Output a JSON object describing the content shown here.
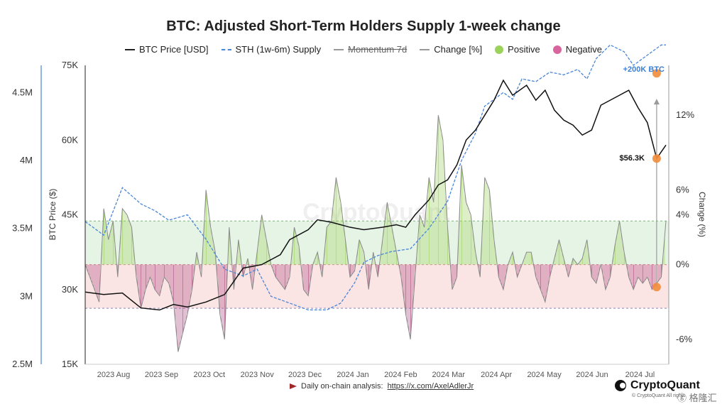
{
  "title": "BTC: Adjusted Short-Term Holders Supply 1-week change",
  "legend": [
    {
      "label": "BTC Price [USD]",
      "kind": "line",
      "color": "#222222"
    },
    {
      "label": "STH (1w-6m) Supply",
      "kind": "dash",
      "color": "#4a86d8"
    },
    {
      "label": "Momentum 7d",
      "kind": "gray-strike",
      "color": "#888888"
    },
    {
      "label": "Change [%]",
      "kind": "gray",
      "color": "#999999"
    },
    {
      "label": "Positive",
      "kind": "dot",
      "color": "#9bd35a"
    },
    {
      "label": "Negative",
      "kind": "dot",
      "color": "#d8659e"
    }
  ],
  "footer": {
    "prefix": "Daily on-chain analysis: ",
    "link": "https://x.com/AxelAdlerJr"
  },
  "brand": "CryptoQuant",
  "brand_sub": "© CryptoQuant All rights",
  "watermark": "CryptoQuant",
  "corner_mark": "ⓖ 格隆汇",
  "chart_data": {
    "type": "line",
    "x_ticks": [
      "2023 Aug",
      "2023 Sep",
      "2023 Oct",
      "2023 Nov",
      "2023 Dec",
      "2024 Jan",
      "2024 Feb",
      "2024 Mar",
      "2024 Apr",
      "2024 May",
      "2024 Jun",
      "2024 Jul"
    ],
    "axes": {
      "supply_ticks": [
        "4.5M",
        "4M",
        "3.5M",
        "3M",
        "2.5M"
      ],
      "price_ticks": [
        "75K",
        "60K",
        "45K",
        "30K",
        "15K"
      ],
      "price_label": "BTC Price ($)",
      "change_ticks": [
        "12%",
        "6%",
        "4%",
        "0%",
        "-6%"
      ],
      "change_label": "Change (%)",
      "price_range": [
        15000,
        75000
      ],
      "change_range": [
        -8,
        16
      ],
      "supply_range": [
        2500000,
        4700000
      ]
    },
    "bands": {
      "positive_upper": 3.5,
      "negative_lower": -3.5
    },
    "annotations": {
      "sth_label": "+200K BTC",
      "price_label": "$56.3K"
    },
    "series": [
      {
        "name": "BTC Price [USD]",
        "t": [
          0,
          4,
          8,
          12,
          16,
          19,
          22,
          26,
          30,
          34,
          38,
          42,
          44,
          48,
          50,
          53,
          57,
          60,
          64,
          67,
          69,
          71,
          74,
          76,
          78,
          80,
          82,
          84,
          86,
          88,
          90,
          92,
          95,
          97,
          99,
          101,
          103,
          105,
          107,
          109,
          111,
          113,
          115,
          117,
          119,
          121,
          123,
          125
        ],
        "values": [
          29500,
          29000,
          29300,
          26300,
          25900,
          27000,
          26500,
          27500,
          29000,
          34300,
          35000,
          37000,
          40000,
          42000,
          44000,
          43500,
          42500,
          42000,
          42500,
          43000,
          42500,
          45000,
          48000,
          51000,
          52000,
          55000,
          60000,
          62000,
          65000,
          68000,
          72000,
          69000,
          71000,
          68000,
          70000,
          66000,
          64000,
          63000,
          61000,
          62000,
          67000,
          68000,
          69000,
          70000,
          66500,
          63500,
          56300,
          59000
        ]
      },
      {
        "name": "STH (1w-6m) Supply",
        "t": [
          0,
          4,
          8,
          12,
          15,
          18,
          22,
          26,
          30,
          34,
          37,
          40,
          44,
          48,
          52,
          55,
          58,
          60,
          63,
          66,
          70,
          74,
          78,
          81,
          84,
          86,
          88,
          90,
          92,
          94,
          97,
          100,
          103,
          106,
          108,
          110,
          113,
          116,
          118,
          120,
          122,
          124,
          125
        ],
        "values": [
          3550000,
          3450000,
          3800000,
          3680000,
          3630000,
          3560000,
          3600000,
          3420000,
          3200000,
          3150000,
          3200000,
          3000000,
          2950000,
          2900000,
          2900000,
          2950000,
          3100000,
          3250000,
          3300000,
          3330000,
          3350000,
          3500000,
          3700000,
          4000000,
          4200000,
          4400000,
          4450000,
          4500000,
          4450000,
          4600000,
          4580000,
          4650000,
          4630000,
          4670000,
          4600000,
          4750000,
          4850000,
          4800000,
          4700000,
          4750000,
          4800000,
          4850000,
          4850000
        ]
      },
      {
        "name": "Change [%]",
        "t": [
          0,
          2,
          3,
          4,
          5,
          6,
          7,
          8,
          9,
          10,
          11,
          12,
          13,
          14,
          15,
          16,
          17,
          18,
          19,
          20,
          21,
          22,
          23,
          24,
          25,
          26,
          27,
          28,
          29,
          30,
          31,
          32,
          33,
          34,
          35,
          36,
          37,
          38,
          39,
          40,
          41,
          42,
          43,
          44,
          45,
          46,
          47,
          48,
          49,
          50,
          51,
          52,
          53,
          54,
          55,
          56,
          57,
          58,
          59,
          60,
          61,
          62,
          63,
          64,
          65,
          66,
          67,
          68,
          69,
          70,
          71,
          72,
          73,
          74,
          75,
          76,
          77,
          78,
          79,
          80,
          81,
          82,
          83,
          84,
          85,
          86,
          87,
          88,
          89,
          90,
          91,
          92,
          93,
          94,
          95,
          96,
          97,
          98,
          99,
          100,
          101,
          102,
          103,
          104,
          105,
          106,
          107,
          108,
          109,
          110,
          111,
          112,
          113,
          114,
          115,
          116,
          117,
          118,
          119,
          120,
          121,
          122,
          123,
          124,
          125
        ],
        "values": [
          0,
          -2,
          -3,
          4.5,
          2,
          3.5,
          -1,
          4.5,
          4,
          3,
          -1,
          -3.5,
          -2,
          -1,
          -2,
          -2.5,
          -1,
          -1.5,
          -3,
          -7,
          -5.5,
          -4,
          -2,
          1,
          -1,
          6,
          3,
          1,
          -4,
          -6,
          3,
          -2,
          2,
          -1,
          0.5,
          -2,
          1,
          4,
          2,
          0,
          -1,
          -1.5,
          -2,
          -1,
          3,
          1.5,
          -2,
          -2.5,
          0,
          1,
          -1,
          3,
          3.5,
          7,
          5,
          2,
          -1,
          -0.5,
          2,
          1,
          -2,
          1,
          -1,
          2,
          5,
          3,
          1,
          -1,
          -4,
          -6,
          -1,
          4,
          3,
          7,
          5,
          12,
          10,
          3,
          -2,
          -1,
          8,
          5,
          4,
          1,
          -1,
          7,
          6,
          2,
          -1,
          -2,
          0,
          1,
          -1,
          0,
          1,
          1,
          -1,
          -2,
          -3,
          -1,
          0.5,
          2,
          0.5,
          -1,
          0.5,
          0,
          0.5,
          2,
          -1,
          -1.5,
          0,
          -2,
          -1,
          1.5,
          3.5,
          1,
          -1,
          -2,
          -1,
          -1.5,
          -1,
          -2,
          -1.5,
          -1,
          3.5
        ]
      }
    ]
  }
}
